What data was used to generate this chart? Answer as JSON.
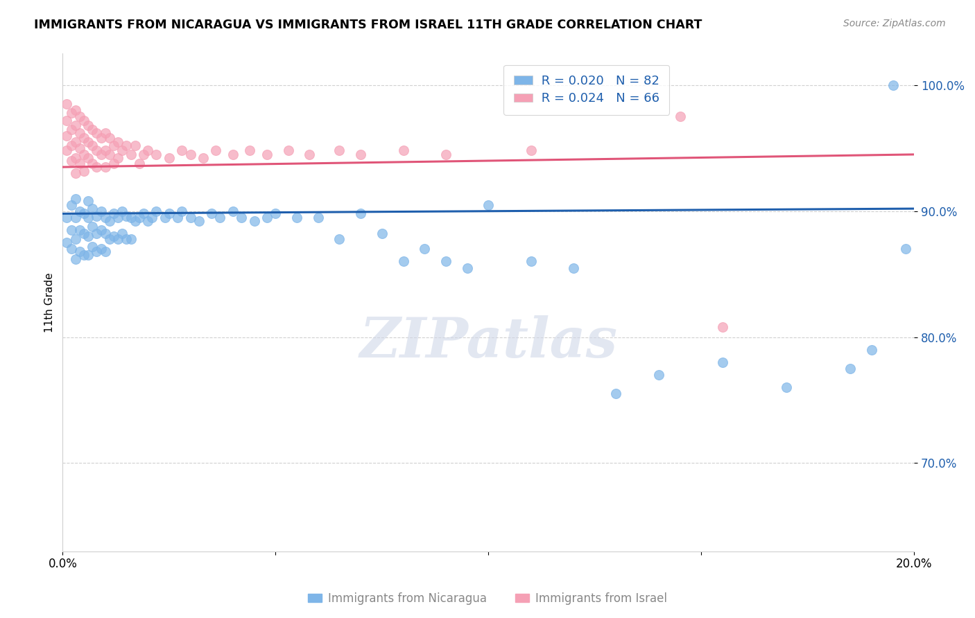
{
  "title": "IMMIGRANTS FROM NICARAGUA VS IMMIGRANTS FROM ISRAEL 11TH GRADE CORRELATION CHART",
  "source": "Source: ZipAtlas.com",
  "ylabel": "11th Grade",
  "xlim": [
    0.0,
    0.2
  ],
  "ylim": [
    0.63,
    1.025
  ],
  "yticks": [
    0.7,
    0.8,
    0.9,
    1.0
  ],
  "ytick_labels": [
    "70.0%",
    "80.0%",
    "90.0%",
    "100.0%"
  ],
  "xticks": [
    0.0,
    0.05,
    0.1,
    0.15,
    0.2
  ],
  "xtick_labels": [
    "0.0%",
    "",
    "",
    "",
    "20.0%"
  ],
  "legend_r1": "R = 0.020",
  "legend_n1": "N = 82",
  "legend_r2": "R = 0.024",
  "legend_n2": "N = 66",
  "color_nicaragua": "#7EB5E8",
  "color_israel": "#F5A0B5",
  "color_line_nicaragua": "#1F5FAD",
  "color_line_israel": "#E05578",
  "watermark": "ZIPatlas",
  "nicaragua_x": [
    0.001,
    0.001,
    0.002,
    0.002,
    0.002,
    0.003,
    0.003,
    0.003,
    0.003,
    0.004,
    0.004,
    0.004,
    0.005,
    0.005,
    0.005,
    0.006,
    0.006,
    0.006,
    0.006,
    0.007,
    0.007,
    0.007,
    0.008,
    0.008,
    0.008,
    0.009,
    0.009,
    0.009,
    0.01,
    0.01,
    0.01,
    0.011,
    0.011,
    0.012,
    0.012,
    0.013,
    0.013,
    0.014,
    0.014,
    0.015,
    0.015,
    0.016,
    0.016,
    0.017,
    0.018,
    0.019,
    0.02,
    0.021,
    0.022,
    0.024,
    0.025,
    0.027,
    0.028,
    0.03,
    0.032,
    0.035,
    0.037,
    0.04,
    0.042,
    0.045,
    0.048,
    0.05,
    0.055,
    0.06,
    0.065,
    0.07,
    0.075,
    0.08,
    0.085,
    0.09,
    0.095,
    0.1,
    0.11,
    0.12,
    0.13,
    0.14,
    0.155,
    0.17,
    0.185,
    0.19,
    0.195,
    0.198
  ],
  "nicaragua_y": [
    0.895,
    0.875,
    0.905,
    0.885,
    0.87,
    0.91,
    0.895,
    0.878,
    0.862,
    0.9,
    0.885,
    0.868,
    0.898,
    0.882,
    0.865,
    0.908,
    0.895,
    0.88,
    0.865,
    0.902,
    0.888,
    0.872,
    0.896,
    0.882,
    0.868,
    0.9,
    0.885,
    0.87,
    0.895,
    0.882,
    0.868,
    0.892,
    0.878,
    0.898,
    0.88,
    0.895,
    0.878,
    0.9,
    0.882,
    0.896,
    0.878,
    0.895,
    0.878,
    0.892,
    0.895,
    0.898,
    0.892,
    0.895,
    0.9,
    0.895,
    0.898,
    0.895,
    0.9,
    0.895,
    0.892,
    0.898,
    0.895,
    0.9,
    0.895,
    0.892,
    0.895,
    0.898,
    0.895,
    0.895,
    0.878,
    0.898,
    0.882,
    0.86,
    0.87,
    0.86,
    0.855,
    0.905,
    0.86,
    0.855,
    0.755,
    0.77,
    0.78,
    0.76,
    0.775,
    0.79,
    1.0,
    0.87
  ],
  "israel_x": [
    0.001,
    0.001,
    0.001,
    0.001,
    0.002,
    0.002,
    0.002,
    0.002,
    0.003,
    0.003,
    0.003,
    0.003,
    0.003,
    0.004,
    0.004,
    0.004,
    0.004,
    0.005,
    0.005,
    0.005,
    0.005,
    0.006,
    0.006,
    0.006,
    0.007,
    0.007,
    0.007,
    0.008,
    0.008,
    0.008,
    0.009,
    0.009,
    0.01,
    0.01,
    0.01,
    0.011,
    0.011,
    0.012,
    0.012,
    0.013,
    0.013,
    0.014,
    0.015,
    0.016,
    0.017,
    0.018,
    0.019,
    0.02,
    0.022,
    0.025,
    0.028,
    0.03,
    0.033,
    0.036,
    0.04,
    0.044,
    0.048,
    0.053,
    0.058,
    0.065,
    0.07,
    0.08,
    0.09,
    0.11,
    0.145,
    0.155
  ],
  "israel_y": [
    0.985,
    0.972,
    0.96,
    0.948,
    0.978,
    0.965,
    0.952,
    0.94,
    0.98,
    0.968,
    0.955,
    0.942,
    0.93,
    0.975,
    0.962,
    0.95,
    0.938,
    0.972,
    0.958,
    0.945,
    0.932,
    0.968,
    0.955,
    0.942,
    0.965,
    0.952,
    0.938,
    0.962,
    0.948,
    0.935,
    0.958,
    0.945,
    0.962,
    0.948,
    0.935,
    0.958,
    0.945,
    0.952,
    0.938,
    0.955,
    0.942,
    0.948,
    0.952,
    0.945,
    0.952,
    0.938,
    0.945,
    0.948,
    0.945,
    0.942,
    0.948,
    0.945,
    0.942,
    0.948,
    0.945,
    0.948,
    0.945,
    0.948,
    0.945,
    0.948,
    0.945,
    0.948,
    0.945,
    0.948,
    0.975,
    0.808
  ]
}
